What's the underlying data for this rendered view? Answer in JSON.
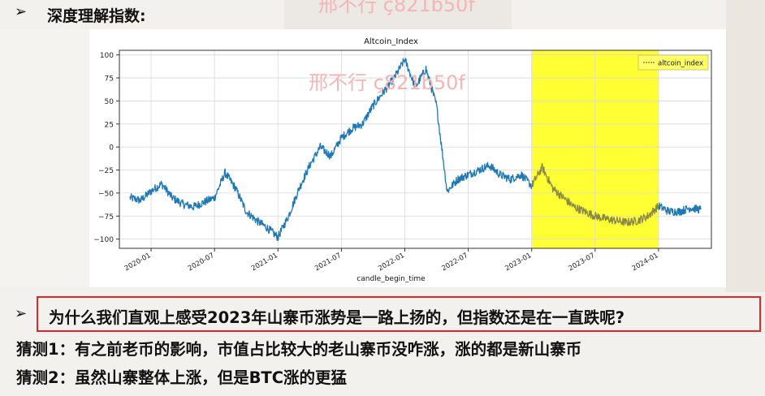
{
  "heading": "深度理解指数:",
  "watermark": "邢不行 ç821b50f",
  "question": "为什么我们直观上感受2023年山寨币涨势是一路上扬的，但指数还是在一直跌呢?",
  "guess1": "猜测1：有之前老币的影响，市值占比较大的老山寨币没咋涨，涨的都是新山寨币",
  "guess2": "猜测2：虽然山寨整体上涨，但是BTC涨的更猛",
  "bullet_symbol": "➢",
  "colors": {
    "line": "#1f77b4",
    "highlight": "#ffff33",
    "highlight_line": "#8a8a44",
    "question_border": "#e0262a"
  },
  "chart_data": {
    "type": "line",
    "title": "Altcoin_Index",
    "xlabel": "candle_begin_time",
    "ylabel": "",
    "ylim": [
      -110,
      105
    ],
    "yticks": [
      100,
      75,
      50,
      25,
      0,
      -25,
      -50,
      -75,
      -100
    ],
    "ytick_labels": [
      "100",
      "75",
      "50",
      "25",
      "0",
      "−25",
      "−50",
      "−75",
      "−100"
    ],
    "xticks": [
      "2020-01",
      "2020-07",
      "2021-01",
      "2021-07",
      "2022-01",
      "2022-07",
      "2023-01",
      "2023-07",
      "2024-01"
    ],
    "xlim": [
      "2019-10",
      "2024-06"
    ],
    "grid": true,
    "legend": {
      "entries": [
        "altcoin_index"
      ],
      "placement": "top-right"
    },
    "highlight_range": [
      "2023-01",
      "2024-01"
    ],
    "series": [
      {
        "name": "altcoin_index",
        "x": [
          "2019-11",
          "2019-12",
          "2020-01",
          "2020-02",
          "2020-03",
          "2020-04",
          "2020-05",
          "2020-06",
          "2020-07",
          "2020-08",
          "2020-09",
          "2020-10",
          "2020-11",
          "2020-12",
          "2021-01",
          "2021-02",
          "2021-03",
          "2021-04",
          "2021-05",
          "2021-06",
          "2021-07",
          "2021-08",
          "2021-09",
          "2021-10",
          "2021-11",
          "2021-12",
          "2022-01",
          "2022-02",
          "2022-03",
          "2022-04",
          "2022-05",
          "2022-06",
          "2022-07",
          "2022-08",
          "2022-09",
          "2022-10",
          "2022-11",
          "2022-12",
          "2023-01",
          "2023-02",
          "2023-03",
          "2023-04",
          "2023-05",
          "2023-06",
          "2023-07",
          "2023-08",
          "2023-09",
          "2023-10",
          "2023-11",
          "2023-12",
          "2024-01",
          "2024-02",
          "2024-03",
          "2024-04",
          "2024-05"
        ],
        "values": [
          -55,
          -58,
          -48,
          -40,
          -55,
          -62,
          -65,
          -60,
          -55,
          -28,
          -45,
          -70,
          -80,
          -88,
          -98,
          -75,
          -45,
          -20,
          0,
          -10,
          10,
          20,
          25,
          45,
          60,
          75,
          95,
          65,
          85,
          45,
          -48,
          -35,
          -30,
          -25,
          -20,
          -30,
          -35,
          -30,
          -42,
          -22,
          -45,
          -55,
          -65,
          -70,
          -75,
          -78,
          -80,
          -82,
          -80,
          -75,
          -64,
          -70,
          -70,
          -66,
          -68
        ]
      }
    ]
  }
}
